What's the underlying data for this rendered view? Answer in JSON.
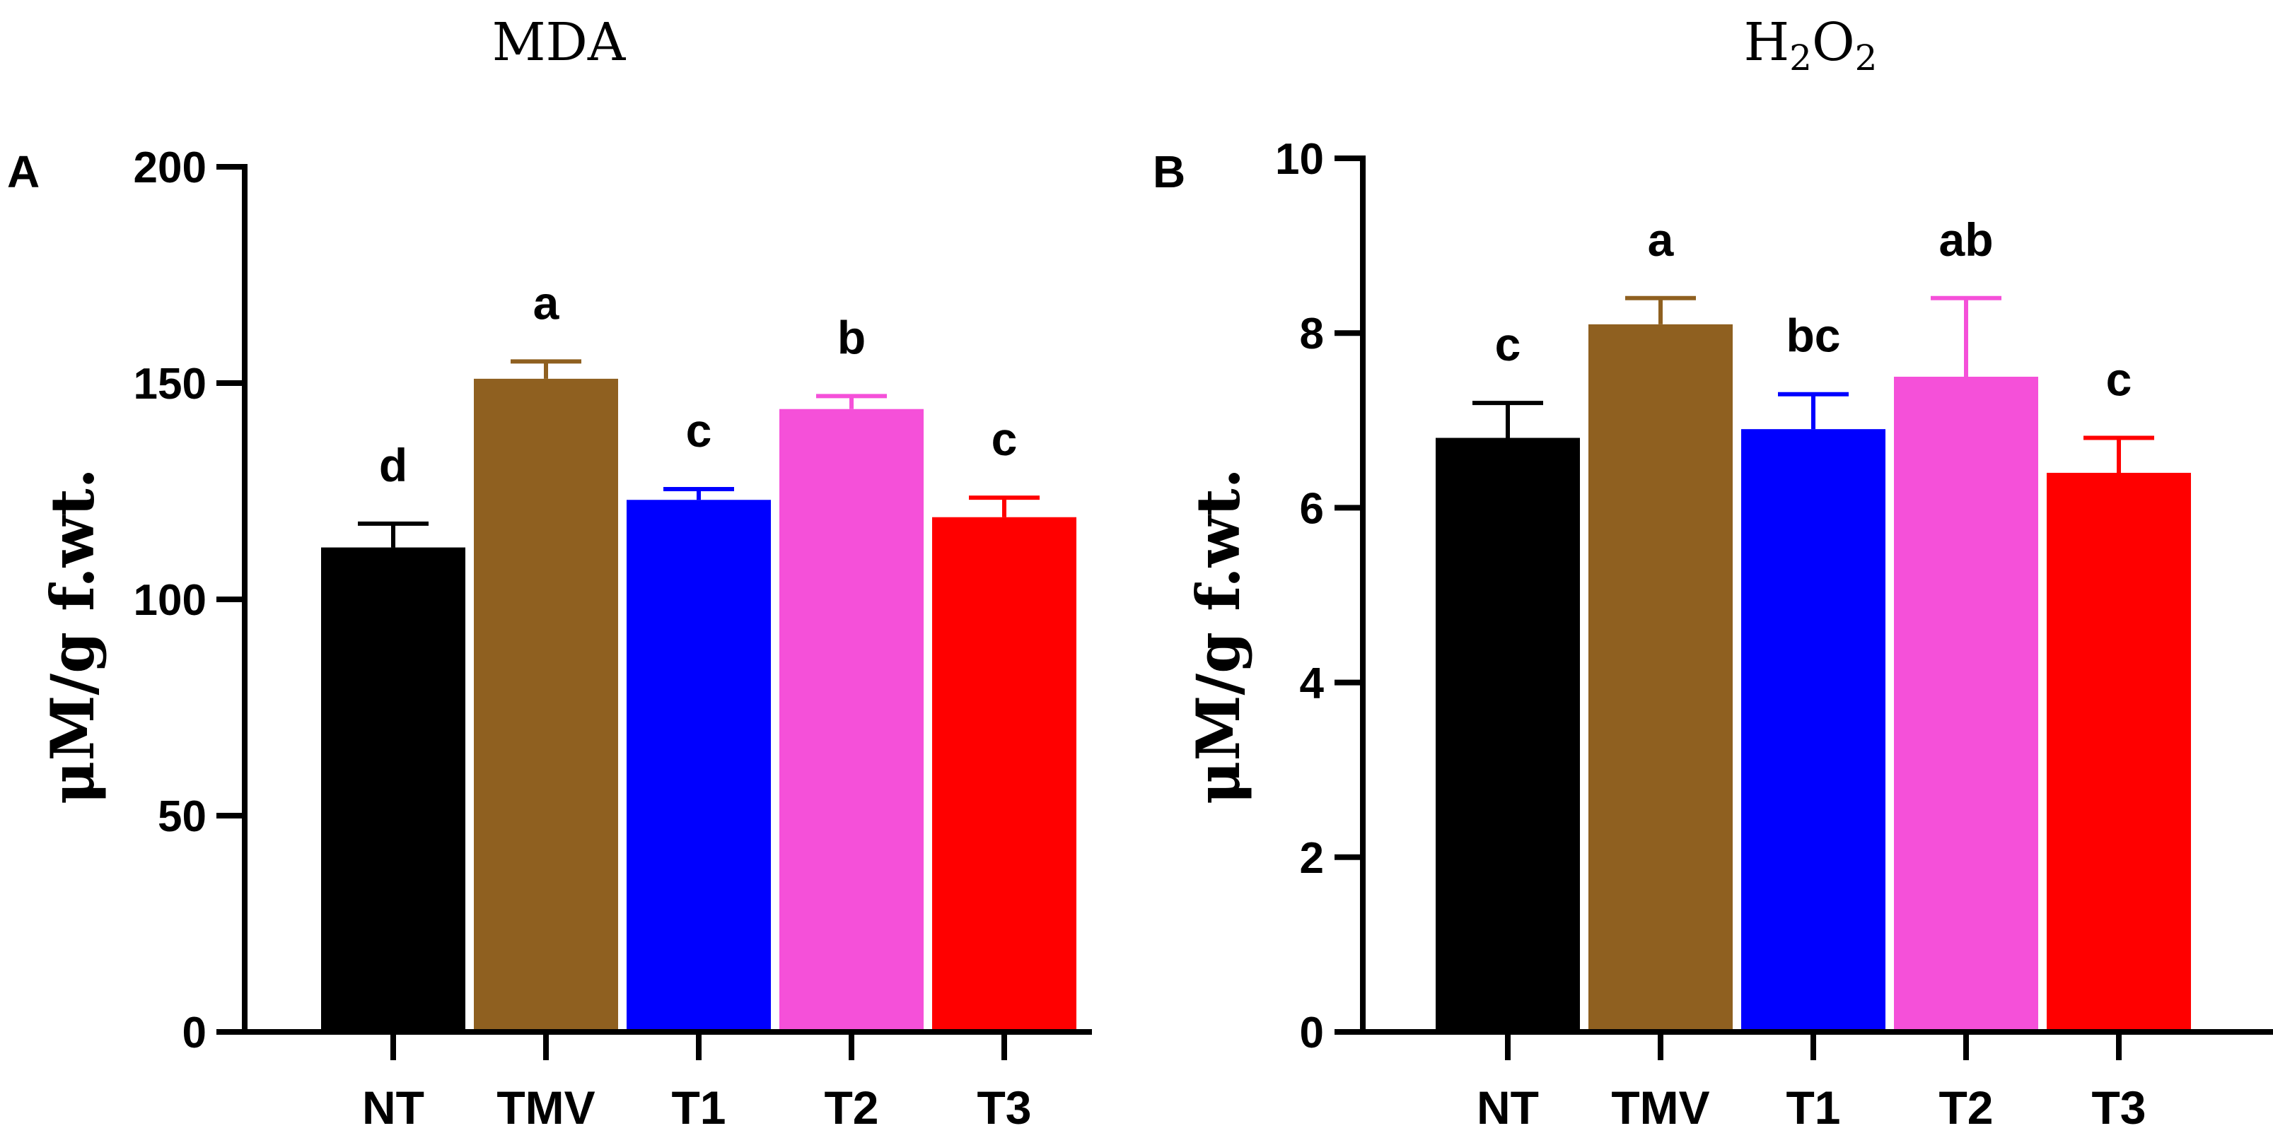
{
  "chart_data": [
    {
      "type": "bar",
      "panel": "A",
      "title": "MDA",
      "ylabel": "μM/g f.wt.",
      "xlabel": "",
      "categories": [
        "NT",
        "TMV",
        "T1",
        "T2",
        "T3"
      ],
      "values": [
        112,
        151,
        123,
        144,
        119
      ],
      "errors": [
        5.5,
        4,
        2.5,
        3,
        4.5
      ],
      "significance": [
        "d",
        "a",
        "c",
        "b",
        "c"
      ],
      "colors": [
        "#000000",
        "#8f6020",
        "#0000ff",
        "#f550d9",
        "#ff0000"
      ],
      "ylim": [
        0,
        200
      ],
      "yticks": [
        0,
        50,
        100,
        150,
        200
      ]
    },
    {
      "type": "bar",
      "panel": "B",
      "title": "H2O2",
      "title_parts": {
        "h1": "H",
        "sub1": "2",
        "h2": "O",
        "sub2": "2"
      },
      "ylabel": "μM/g f.wt.",
      "xlabel": "",
      "categories": [
        "NT",
        "TMV",
        "T1",
        "T2",
        "T3"
      ],
      "values": [
        6.8,
        8.1,
        6.9,
        7.5,
        6.4
      ],
      "errors": [
        0.4,
        0.3,
        0.4,
        0.9,
        0.4
      ],
      "significance": [
        "c",
        "a",
        "bc",
        "ab",
        "c"
      ],
      "colors": [
        "#000000",
        "#8f6020",
        "#0000ff",
        "#f550d9",
        "#ff0000"
      ],
      "ylim": [
        0,
        10
      ],
      "yticks": [
        0,
        2,
        4,
        6,
        8,
        10
      ]
    }
  ]
}
